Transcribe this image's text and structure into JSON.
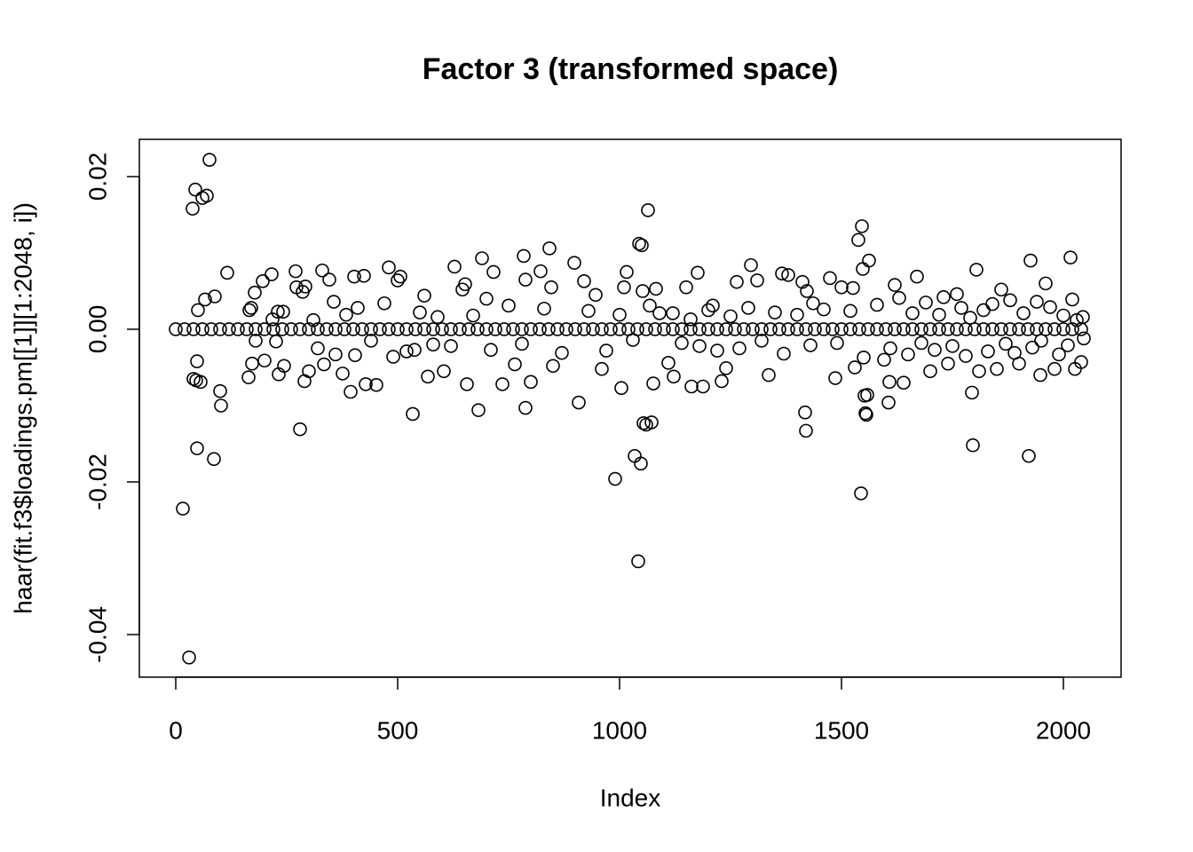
{
  "chart_data": {
    "type": "scatter",
    "title": "Factor 3 (transformed space)",
    "x_label": "Index",
    "y_label": "haar(fit.f3$loadings.pm[[1]][1:2048, i])",
    "color": "#000000",
    "xlim": [
      -82,
      2130
    ],
    "ylim": [
      -0.04558,
      0.02488
    ],
    "xticks": [
      0,
      500,
      1000,
      1500,
      2000
    ],
    "yticks": [
      -0.04,
      -0.02,
      {
        "value": 0,
        "label": "0.00"
      },
      0.02
    ],
    "series": [
      {
        "name": "loadings",
        "x": [
          0,
          20,
          40,
          60,
          80,
          100,
          120,
          140,
          160,
          180,
          200,
          220,
          240,
          260,
          280,
          300,
          320,
          340,
          360,
          380,
          400,
          420,
          440,
          460,
          480,
          500,
          520,
          540,
          560,
          580,
          600,
          620,
          640,
          660,
          680,
          700,
          720,
          740,
          760,
          780,
          800,
          820,
          840,
          860,
          880,
          900,
          920,
          940,
          960,
          980,
          1000,
          1020,
          1040,
          1060,
          1080,
          1100,
          1120,
          1140,
          1160,
          1180,
          1200,
          1220,
          1240,
          1260,
          1280,
          1300,
          1320,
          1340,
          1360,
          1380,
          1400,
          1420,
          1440,
          1460,
          1480,
          1500,
          1520,
          1540,
          1560,
          1580,
          1600,
          1620,
          1640,
          1660,
          1680,
          1700,
          1720,
          1740,
          1760,
          1780,
          1800,
          1820,
          1840,
          1860,
          1880,
          1900,
          1920,
          1940,
          1960,
          1980,
          2000,
          2020,
          2040,
          16,
          30,
          38,
          40,
          44,
          46,
          48,
          48,
          50,
          56,
          60,
          66,
          70,
          76,
          86,
          88,
          100,
          102,
          116,
          164,
          166,
          170,
          172,
          178,
          180,
          196,
          200,
          216,
          218,
          226,
          230,
          232,
          242,
          244,
          270,
          272,
          280,
          286,
          290,
          292,
          300,
          330,
          334,
          346,
          356,
          376,
          384,
          394,
          402,
          404,
          424,
          428,
          452,
          480,
          490,
          500,
          506,
          534,
          538,
          560,
          568,
          580,
          604,
          628,
          646,
          652,
          656,
          682,
          690,
          700,
          716,
          736,
          764,
          784,
          788,
          788,
          800,
          822,
          842,
          846,
          850,
          898,
          908,
          920,
          946,
          960,
          990,
          1004,
          1010,
          1016,
          1034,
          1042,
          1044,
          1048,
          1050,
          1052,
          1054,
          1060,
          1064,
          1068,
          1072,
          1076,
          1082,
          1110,
          1122,
          1150,
          1162,
          1176,
          1188,
          1200,
          1230,
          1240,
          1264,
          1296,
          1310,
          1336,
          1366,
          1380,
          1412,
          1418,
          1420,
          1422,
          1436,
          1474,
          1486,
          1500,
          1526,
          1530,
          1538,
          1544,
          1546,
          1548,
          1550,
          1552,
          1554,
          1556,
          1558,
          1562,
          1596,
          1606,
          1608,
          1620,
          1640,
          1670,
          1700,
          1740,
          1760,
          1794,
          1796,
          1804,
          1810,
          1850,
          1860,
          1900,
          1922,
          1926,
          1948,
          1960,
          1980,
          2016,
          2026,
          2040,
          1120,
          1140,
          1160,
          1180,
          1210,
          1220,
          1250,
          1270,
          1290,
          1320,
          1350,
          1370,
          1400,
          1430,
          1460,
          1490,
          1520,
          1580,
          1610,
          1630,
          1650,
          1660,
          1680,
          1690,
          1710,
          1720,
          1730,
          1750,
          1770,
          1780,
          1790,
          1820,
          1830,
          1840,
          1870,
          1880,
          1890,
          1910,
          1930,
          1940,
          1950,
          1970,
          1990,
          2000,
          2010,
          2020,
          2030,
          2044,
          2046,
          310,
          320,
          360,
          410,
          440,
          470,
          520,
          550,
          590,
          620,
          670,
          710,
          750,
          780,
          830,
          870,
          930,
          970,
          1000,
          1030,
          1090
        ],
        "values": [
          0,
          0,
          0,
          0,
          0,
          0,
          0,
          0,
          0,
          0,
          0,
          0,
          0,
          0,
          0,
          0,
          0,
          0,
          0,
          0,
          0,
          0,
          0,
          0,
          0,
          0,
          0,
          0,
          0,
          0,
          0,
          0,
          0,
          0,
          0,
          0,
          0,
          0,
          0,
          0,
          0,
          0,
          0,
          0,
          0,
          0,
          0,
          0,
          0,
          0,
          0,
          0,
          0,
          0,
          0,
          0,
          0,
          0,
          0,
          0,
          0,
          0,
          0,
          0,
          0,
          0,
          0,
          0,
          0,
          0,
          0,
          0,
          0,
          0,
          0,
          0,
          0,
          0,
          0,
          0,
          0,
          0,
          0,
          0,
          0,
          0,
          0,
          0,
          0,
          0,
          0,
          0,
          0,
          0,
          0,
          0,
          0,
          0,
          0,
          0,
          0,
          0,
          0,
          -0.0235,
          -0.043,
          0.0158,
          -0.0065,
          0.0183,
          -0.0067,
          -0.0156,
          -0.0042,
          0.0025,
          -0.0069,
          0.0172,
          0.0039,
          0.0175,
          0.0222,
          -0.017,
          0.0043,
          -0.0081,
          -0.01,
          0.0074,
          -0.0063,
          0.0025,
          0.0028,
          -0.0045,
          0.0048,
          -0.0015,
          0.0063,
          -0.0041,
          0.0072,
          0.0013,
          -0.0016,
          0.0023,
          -0.0059,
          0.0023,
          -0.0048,
          0.0076,
          0.0055,
          -0.0131,
          0.0049,
          -0.0068,
          0.0056,
          -0.0055,
          0.0077,
          -0.0046,
          0.0065,
          0.0036,
          -0.0058,
          0.0019,
          -0.0082,
          0.0069,
          -0.0034,
          0.007,
          -0.0072,
          -0.0073,
          0.0081,
          -0.0036,
          0.0064,
          0.0069,
          -0.0111,
          -0.0027,
          0.0044,
          -0.0062,
          -0.002,
          -0.0055,
          0.0082,
          0.0052,
          0.0059,
          -0.0072,
          -0.0106,
          0.0093,
          0.004,
          0.0075,
          -0.0072,
          -0.0046,
          0.0096,
          -0.0103,
          0.0065,
          -0.0069,
          0.0076,
          0.0106,
          0.0055,
          -0.0048,
          0.0087,
          -0.0096,
          0.0063,
          0.0045,
          -0.0052,
          -0.0196,
          -0.0077,
          0.0055,
          0.0075,
          -0.0166,
          -0.0304,
          0.0112,
          -0.0176,
          0.011,
          0.005,
          -0.0123,
          -0.0125,
          0.0156,
          0.0031,
          -0.0122,
          -0.0071,
          0.0053,
          -0.0044,
          -0.0062,
          0.0055,
          -0.0075,
          0.0074,
          -0.0075,
          0.0025,
          -0.0068,
          -0.0051,
          0.0062,
          0.0084,
          0.0064,
          -0.006,
          0.0073,
          0.0071,
          0.0062,
          -0.0109,
          -0.0133,
          0.005,
          0.0034,
          0.0067,
          -0.0064,
          0.0055,
          0.0054,
          -0.005,
          0.0117,
          -0.0215,
          0.0135,
          0.0079,
          -0.0037,
          -0.0087,
          -0.011,
          -0.0112,
          -0.0086,
          0.009,
          -0.004,
          -0.0096,
          -0.0069,
          0.0058,
          -0.007,
          0.0069,
          -0.0055,
          -0.0045,
          0.0046,
          -0.0083,
          -0.0152,
          0.0078,
          -0.0055,
          -0.0052,
          0.0052,
          -0.0045,
          -0.0166,
          0.009,
          -0.006,
          0.006,
          -0.0052,
          0.0094,
          -0.0052,
          -0.0043,
          0.0021,
          -0.0018,
          0.0013,
          -0.0022,
          0.0031,
          -0.0028,
          0.0017,
          -0.0025,
          0.0028,
          -0.0015,
          0.0022,
          -0.0032,
          0.0019,
          -0.0021,
          0.0026,
          -0.0018,
          0.0024,
          0.0032,
          -0.0025,
          0.0041,
          -0.0033,
          0.0021,
          -0.0018,
          0.0035,
          -0.0027,
          0.0019,
          0.0042,
          -0.0022,
          0.0028,
          -0.0035,
          0.0015,
          0.0025,
          -0.0029,
          0.0033,
          -0.0019,
          0.0038,
          -0.0031,
          0.0021,
          -0.0024,
          0.0036,
          -0.0015,
          0.0029,
          -0.0033,
          0.0018,
          -0.0021,
          0.0039,
          0.0012,
          0.0016,
          -0.0012,
          0.0012,
          -0.0025,
          -0.0033,
          0.0028,
          -0.0015,
          0.0034,
          -0.0029,
          0.0022,
          0.0016,
          -0.0022,
          0.0018,
          -0.0027,
          0.0031,
          -0.0019,
          0.0027,
          -0.0031,
          0.0024,
          -0.0028,
          0.0019,
          -0.0014,
          0.0021
        ]
      }
    ]
  }
}
